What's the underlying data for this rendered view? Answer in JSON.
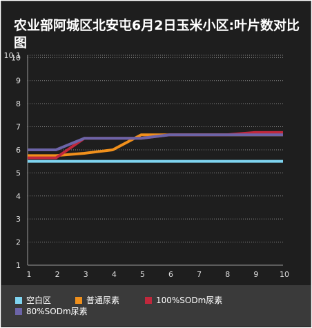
{
  "chart_data": {
    "type": "line",
    "title": "农业部阿城区北安屯6月2日玉米小区:叶片数对比图",
    "x": [
      1,
      2,
      3,
      4,
      5,
      6,
      7,
      8,
      9,
      10
    ],
    "xlim": [
      1,
      10
    ],
    "ylim": [
      1,
      10.1
    ],
    "y_ticks": [
      "1",
      "2",
      "3",
      "4",
      "5",
      "6",
      "7",
      "8",
      "9",
      "10",
      "10.1"
    ],
    "grid": true,
    "legend_position": "bottom",
    "series": [
      {
        "name": "空白区",
        "color": "#7fd4f0",
        "values": [
          5.5,
          5.5,
          5.5,
          5.5,
          5.5,
          5.5,
          5.5,
          5.5,
          5.5,
          5.5
        ]
      },
      {
        "name": "普通尿素",
        "color": "#f0901c",
        "values": [
          5.75,
          5.75,
          5.85,
          6.0,
          6.65,
          6.65,
          6.65,
          6.65,
          6.65,
          6.65
        ]
      },
      {
        "name": "100%SODm尿素",
        "color": "#c0283c",
        "values": [
          5.65,
          5.65,
          6.5,
          6.5,
          6.5,
          6.65,
          6.65,
          6.65,
          6.75,
          6.75
        ]
      },
      {
        "name": "80%SODm尿素",
        "color": "#6c64a8",
        "values": [
          6.0,
          6.0,
          6.5,
          6.5,
          6.5,
          6.65,
          6.65,
          6.65,
          6.65,
          6.65
        ]
      }
    ]
  }
}
